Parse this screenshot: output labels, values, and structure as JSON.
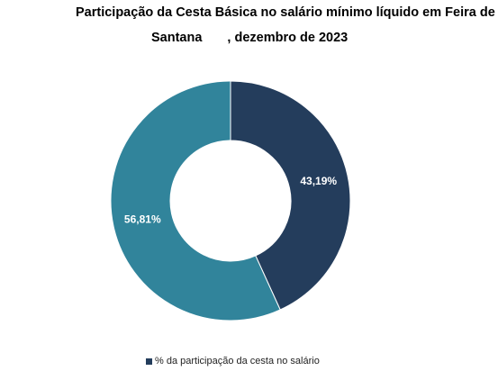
{
  "chart_data": {
    "type": "pie",
    "title_line1": "Participação da Cesta Básica no salário mínimo líquido em Feira de",
    "title_line2_a": "Santana",
    "title_line2_b": ", dezembro de 2023",
    "donut": true,
    "slices": [
      {
        "label": "43,19%",
        "value": 43.19,
        "color": "#243d5c"
      },
      {
        "label": "56,81%",
        "value": 56.81,
        "color": "#31849b"
      }
    ],
    "legend": {
      "label": "% da participação da cesta no salário",
      "color": "#243d5c",
      "placement": "bottom"
    }
  }
}
